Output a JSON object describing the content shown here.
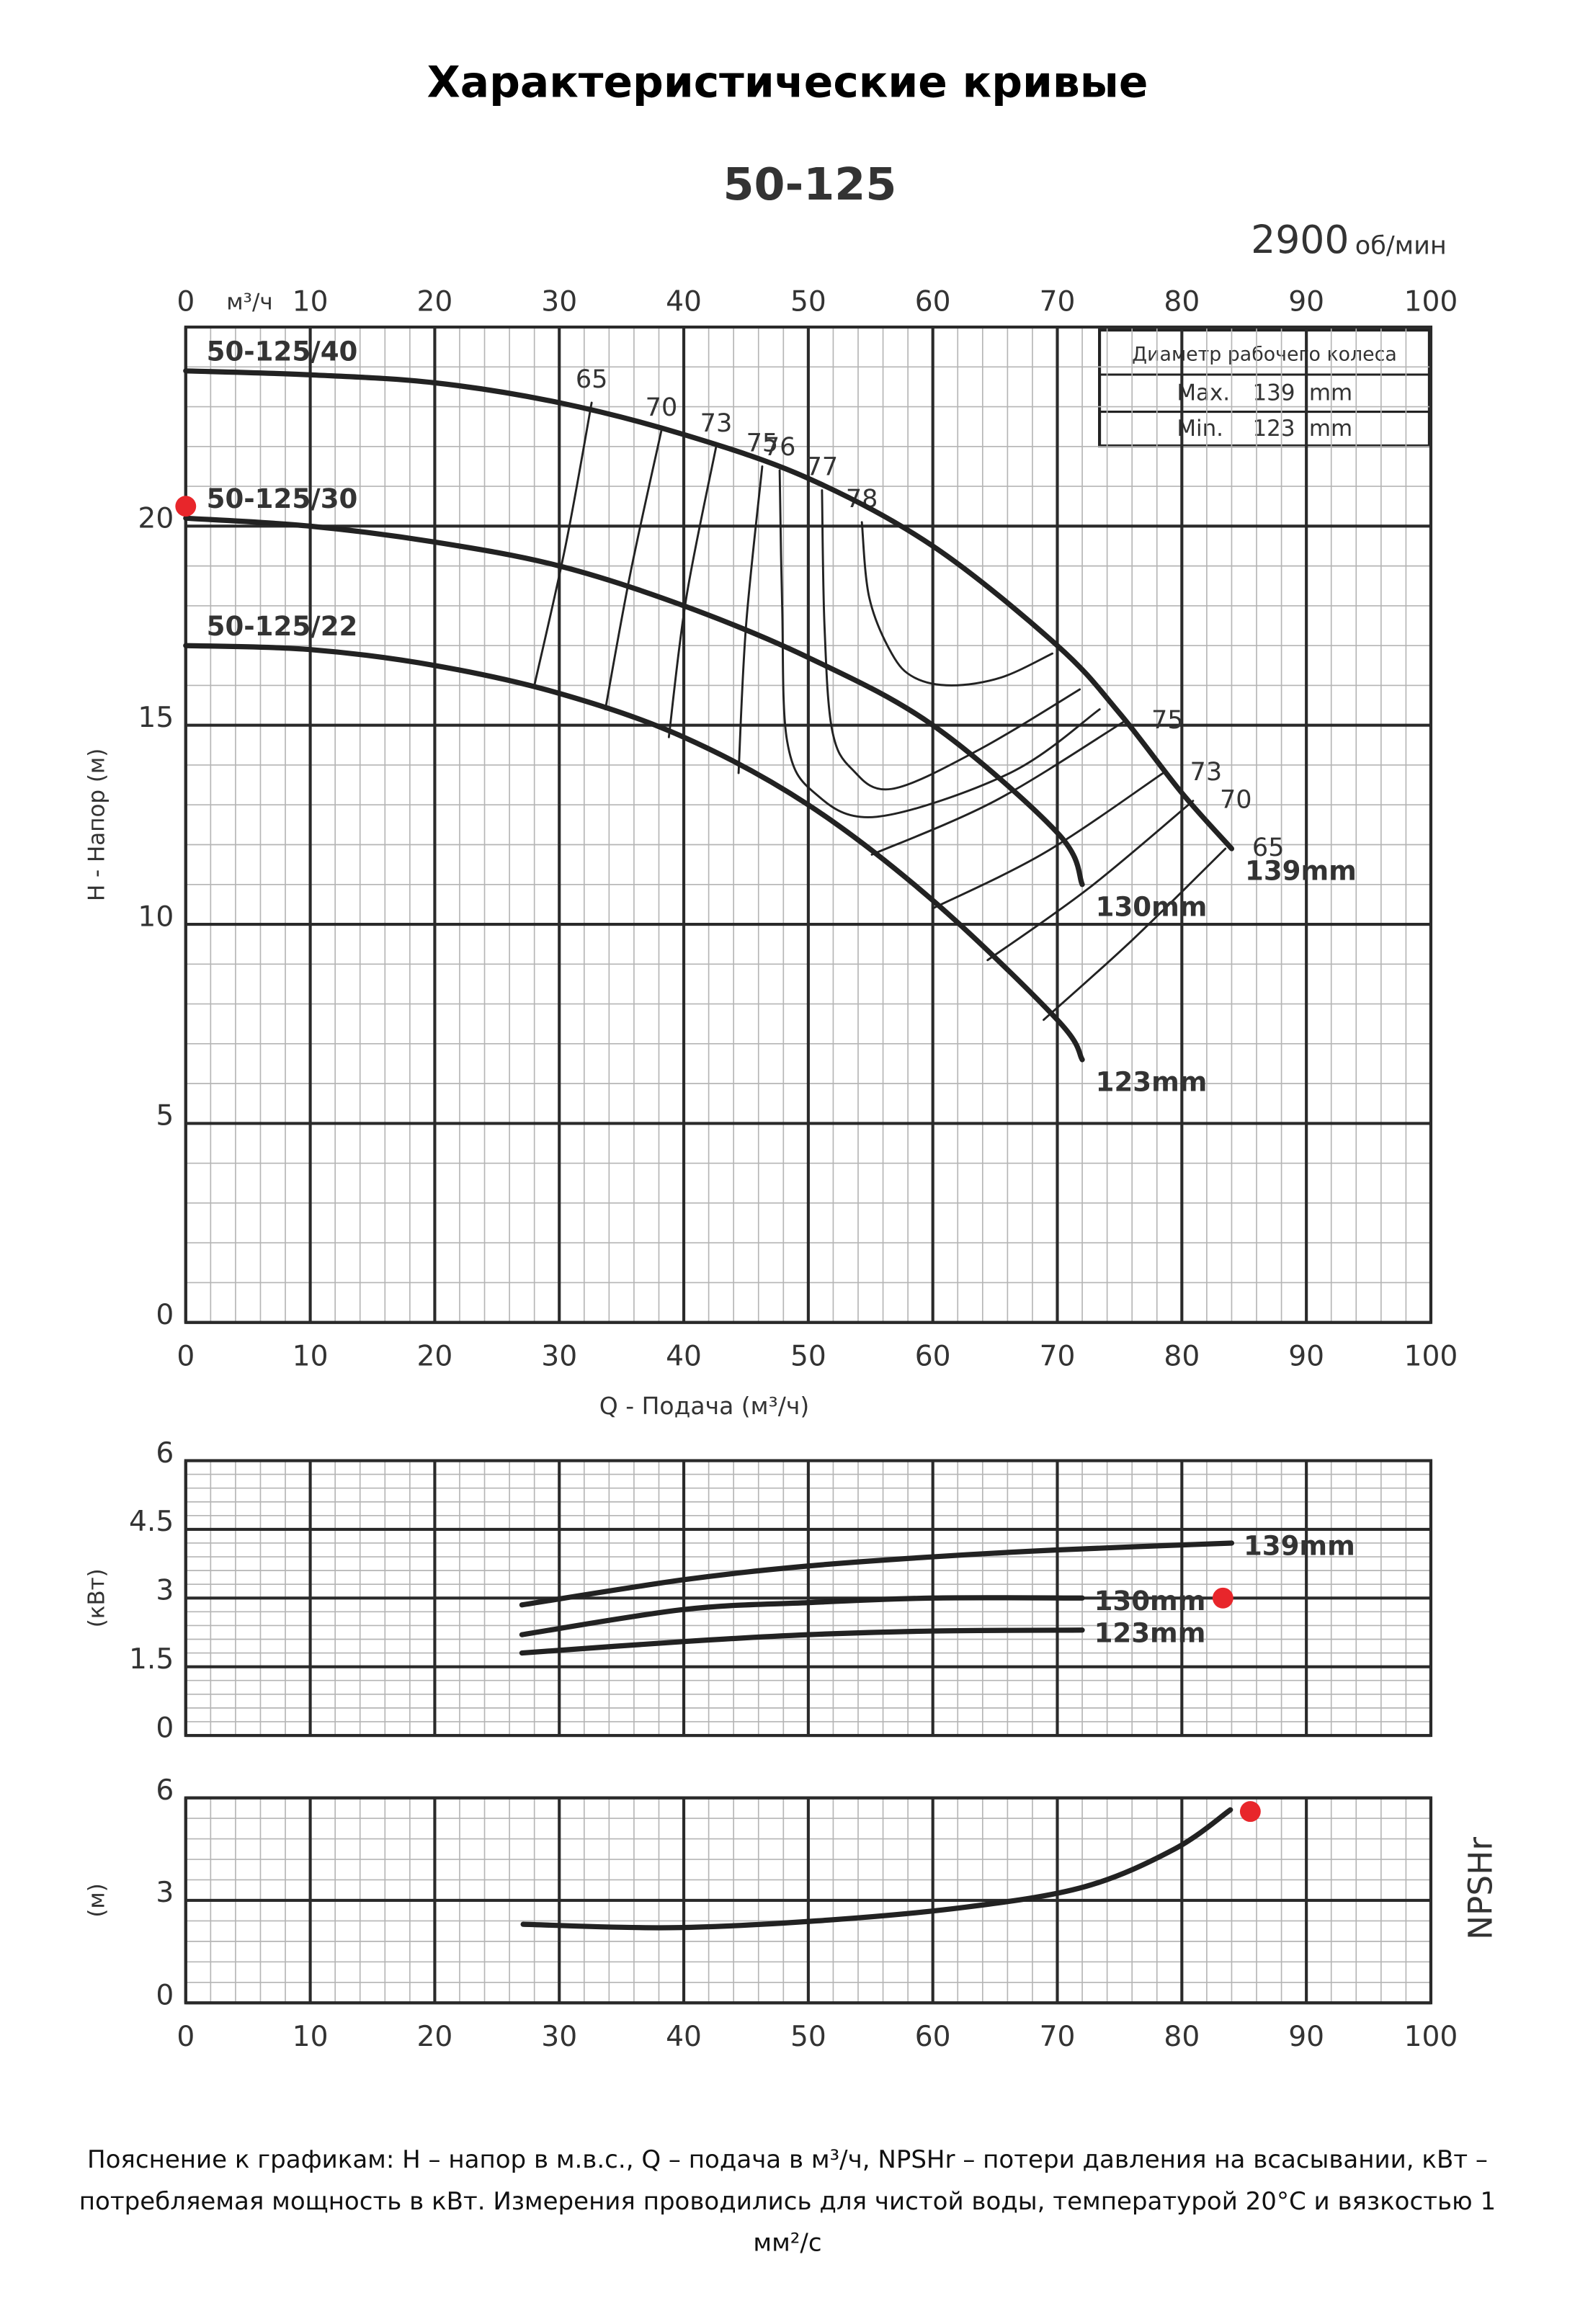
{
  "title": "Характеристические кривые",
  "model": "50-125",
  "speed": "2900",
  "speed_unit": "об/мин",
  "diameter_table": {
    "title": "Диаметр рабочего колеса",
    "rows": [
      [
        "Max.",
        "139",
        "mm"
      ],
      [
        "Min.",
        "123",
        "mm"
      ]
    ]
  },
  "chart_data": [
    {
      "type": "line",
      "xlabel": "Q - Подача (м³/ч)",
      "ylabel": "H - Напор (м)",
      "top_axis_unit": "м³/ч",
      "xtick_labels": true,
      "xlim": [
        0,
        100
      ],
      "ylim": [
        0,
        25
      ],
      "xticks": [
        0,
        10,
        20,
        30,
        40,
        50,
        60,
        70,
        80,
        90,
        100
      ],
      "yticks": [
        0,
        5,
        10,
        15,
        20
      ],
      "grid": true,
      "minor_grid": true,
      "series": [
        {
          "name": "50-125/40",
          "diameter": "139mm",
          "color": "#222222",
          "x": [
            0,
            10,
            20,
            30,
            40,
            50,
            60,
            70,
            75,
            80,
            84
          ],
          "y": [
            23.9,
            23.8,
            23.6,
            23.1,
            22.3,
            21.2,
            19.5,
            17.0,
            15.3,
            13.3,
            11.9
          ]
        },
        {
          "name": "50-125/30",
          "diameter": "130mm",
          "color": "#222222",
          "x": [
            0,
            10,
            20,
            30,
            40,
            50,
            60,
            70,
            72
          ],
          "y": [
            20.2,
            20.0,
            19.6,
            19.0,
            18.0,
            16.7,
            15.0,
            12.3,
            11.0
          ]
        },
        {
          "name": "50-125/22",
          "diameter": "123mm",
          "color": "#222222",
          "x": [
            0,
            10,
            20,
            30,
            40,
            50,
            60,
            70,
            72
          ],
          "y": [
            17.0,
            16.9,
            16.5,
            15.8,
            14.7,
            13.0,
            10.6,
            7.6,
            6.6
          ]
        }
      ],
      "contours": [
        {
          "label": 65,
          "x": [
            32.6,
            30.5,
            28.0
          ],
          "y": [
            23.1,
            19.5,
            16.0
          ]
        },
        {
          "label": 70,
          "x": [
            38.2,
            35.7,
            33.7
          ],
          "y": [
            22.4,
            18.8,
            15.4
          ]
        },
        {
          "label": 73,
          "x": [
            42.6,
            40.2,
            38.8
          ],
          "y": [
            22.0,
            18.2,
            14.7
          ]
        },
        {
          "label": 75,
          "x": [
            46.3,
            45.0,
            44.4
          ],
          "y": [
            21.5,
            17.5,
            13.8
          ]
        },
        {
          "label": 76,
          "x": [
            47.7,
            47.9,
            48.3,
            50.5,
            55.5,
            66.2,
            73.4
          ],
          "y": [
            21.4,
            18.0,
            14.6,
            13.3,
            12.7,
            13.8,
            15.4
          ]
        },
        {
          "label": 77,
          "x": [
            51.1,
            51.3,
            51.9,
            53.5,
            56.7,
            63.8,
            71.8
          ],
          "y": [
            20.9,
            17.5,
            14.9,
            13.9,
            13.4,
            14.4,
            15.9
          ]
        },
        {
          "label": 78,
          "x": [
            54.3,
            54.9,
            56.7,
            58.5,
            61.5,
            65.5,
            69.6
          ],
          "y": [
            20.1,
            18.2,
            16.8,
            16.2,
            16.0,
            16.2,
            16.8
          ]
        },
        {
          "label": 75,
          "x": [
            75.4,
            65.0,
            55.1
          ],
          "y": [
            15.1,
            13.1,
            11.75
          ]
        },
        {
          "label": 73,
          "x": [
            78.5,
            69.0,
            60.0
          ],
          "y": [
            13.8,
            11.8,
            10.4
          ]
        },
        {
          "label": 70,
          "x": [
            80.9,
            72.5,
            64.4
          ],
          "y": [
            13.1,
            10.9,
            9.1
          ]
        },
        {
          "label": 65,
          "x": [
            83.5,
            76.0,
            68.9
          ],
          "y": [
            11.9,
            9.6,
            7.6
          ]
        }
      ],
      "markers": [
        {
          "x": 0,
          "y": 20.5,
          "color": "#e8262b"
        }
      ]
    },
    {
      "type": "line",
      "ylabel": "(кВт)",
      "xtick_labels": false,
      "xlim": [
        0,
        100
      ],
      "ylim": [
        0,
        6
      ],
      "xticks": [
        0,
        10,
        20,
        30,
        40,
        50,
        60,
        70,
        80,
        90,
        100
      ],
      "yticks": [
        0,
        1.5,
        3,
        4.5,
        6
      ],
      "grid": true,
      "minor_grid": true,
      "series": [
        {
          "name": "139mm",
          "color": "#222222",
          "x": [
            27,
            40,
            50,
            60,
            70,
            84
          ],
          "y": [
            2.85,
            3.4,
            3.7,
            3.9,
            4.05,
            4.2
          ]
        },
        {
          "name": "130mm",
          "color": "#222222",
          "x": [
            27,
            40,
            50,
            60,
            72
          ],
          "y": [
            2.2,
            2.75,
            2.9,
            3.0,
            3.0
          ]
        },
        {
          "name": "123mm",
          "color": "#222222",
          "x": [
            27,
            40,
            50,
            60,
            72
          ],
          "y": [
            1.8,
            2.05,
            2.2,
            2.28,
            2.3
          ]
        }
      ],
      "markers": [
        {
          "x": 83.3,
          "y": 3.0,
          "color": "#e8262b"
        }
      ]
    },
    {
      "type": "line",
      "ylabel": "(м)",
      "right_label": "NPSHr",
      "xtick_labels": true,
      "xlim": [
        0,
        100
      ],
      "ylim": [
        0,
        6
      ],
      "xticks": [
        0,
        10,
        20,
        30,
        40,
        50,
        60,
        70,
        80,
        90,
        100
      ],
      "yticks": [
        0,
        3,
        6
      ],
      "grid": true,
      "minor_grid": true,
      "series": [
        {
          "color": "#222222",
          "x": [
            27.1,
            38.8,
            50.7,
            62.6,
            72.2,
            79.4,
            83.9
          ],
          "y": [
            2.3,
            2.2,
            2.4,
            2.8,
            3.4,
            4.5,
            5.65
          ]
        }
      ],
      "markers": [
        {
          "x": 85.5,
          "y": 5.6,
          "color": "#e8262b"
        }
      ]
    }
  ],
  "note": "Пояснение к графикам: H – напор в м.в.с., Q – подача в м³/ч, NPSHr – потери давления на всасывании, кВт – потребляемая мощность в кВт. Измерения проводились для чистой воды, температурой 20°C и вязкостью 1 мм²/с"
}
